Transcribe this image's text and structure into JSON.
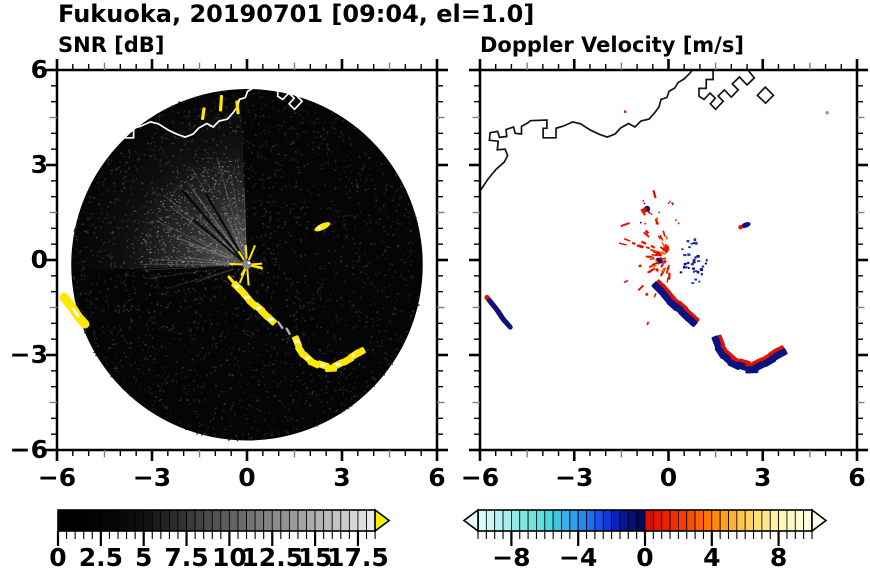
{
  "title": "Fukuoka, 20190701 [09:04, el=1.0]",
  "panels": [
    {
      "subtitle": "SNR [dB]"
    },
    {
      "subtitle": "Doppler Velocity [m/s]"
    }
  ],
  "axes": {
    "xlim": [
      -6,
      6
    ],
    "ylim": [
      -6,
      6
    ],
    "major_ticks": [
      -6,
      -3,
      0,
      3,
      6
    ],
    "minor_tick_step": 0.5,
    "gray_ticks": [
      -4.5,
      -1.5,
      1.5,
      4.5
    ],
    "x_tick_labels": [
      "−6",
      "−3",
      "0",
      "3",
      "6"
    ],
    "y_tick_labels": [
      "6",
      "3",
      "0",
      "−3",
      "−6"
    ],
    "frame_color": "#000000",
    "gray_tick_color": "#808080"
  },
  "chart_data": [
    {
      "type": "heatmap",
      "title": "SNR [dB]",
      "xlabel": "",
      "ylabel": "",
      "xlim": [
        -6,
        6
      ],
      "ylim": [
        -6,
        6
      ],
      "scan_disk": {
        "center": [
          0,
          -0.15
        ],
        "radius": 5.55,
        "fill": "#050505"
      },
      "noise": {
        "seed": 7,
        "count": 2600,
        "bright_count": 380,
        "fan_angles": [
          92,
          182
        ],
        "dim_fan_angles": [
          182,
          228
        ]
      },
      "dark_rays": [
        [
          120,
          2.6
        ],
        [
          131,
          3.1
        ],
        [
          140,
          2.2
        ]
      ],
      "colorbar": {
        "min": 0,
        "max": 18.5,
        "cell_step": 0.5,
        "label_values": [
          0,
          2.5,
          5,
          7.5,
          10,
          12.5,
          15,
          17.5
        ],
        "labels": [
          "0",
          "2.5",
          "5",
          "7.5",
          "10",
          "12.5",
          "15",
          "17.5"
        ],
        "over_arrow_color": "#f7ef00",
        "cells": [
          "#000000",
          "#000000",
          "#010101",
          "#020202",
          "#030303",
          "#050505",
          "#060606",
          "#080808",
          "#0b0b0b",
          "#0e0e0e",
          "#131313",
          "#1b1b1b",
          "#232323",
          "#2b2b2b",
          "#333333",
          "#3b3b3b",
          "#434343",
          "#4b4b4b",
          "#535353",
          "#5b5b5b",
          "#636363",
          "#6b6b6b",
          "#737373",
          "#7b7b7b",
          "#838383",
          "#8b8b8b",
          "#939393",
          "#9b9b9b",
          "#a3a3a3",
          "#ababab",
          "#b3b3b3",
          "#bbbbbb",
          "#c3c3c3",
          "#cccccc",
          "#d5d5d5",
          "#dedede",
          "#e8e8e8"
        ]
      },
      "echo_color": "#ffe800",
      "echo_core_color": "#ffffff",
      "echoes": {
        "top_dashes": [
          [
            -1.38,
            4.62,
            0.4,
            8
          ],
          [
            -0.82,
            4.95,
            0.52,
            4
          ],
          [
            -0.3,
            4.82,
            0.44,
            -6
          ]
        ],
        "mid_blob": [
          2.38,
          1.05,
          0.55,
          0.2,
          -25
        ],
        "edge_patch": [
          [
            -5.78,
            -1.18
          ],
          [
            -5.5,
            -1.52
          ],
          [
            -5.32,
            -1.8
          ],
          [
            -5.12,
            -2.02
          ]
        ],
        "gap_dashes": [
          [
            1.05,
            -2.05,
            0.3,
            -35
          ],
          [
            1.3,
            -2.25,
            0.26,
            -30
          ]
        ],
        "center_dash": [
          -0.5,
          -0.62,
          0.3,
          -40
        ]
      }
    },
    {
      "type": "scatter",
      "title": "Doppler Velocity [m/s]",
      "xlabel": "",
      "ylabel": "",
      "xlim": [
        -6,
        6
      ],
      "ylim": [
        -6,
        6
      ],
      "colorbar": {
        "min": -10,
        "max": 10,
        "cell_step": 0.5,
        "label_values": [
          -8,
          -4,
          0,
          4,
          8
        ],
        "labels": [
          "−8",
          "−4",
          "0",
          "4",
          "8"
        ],
        "under_arrow_color": "#e6fcfa",
        "over_arrow_color": "#fffef0",
        "cells": [
          "#dcfaf8",
          "#cbf6f4",
          "#b9f2f0",
          "#a7eeec",
          "#95eae8",
          "#83e6e4",
          "#71e2e0",
          "#5fdedd",
          "#4fd6dd",
          "#45c4e2",
          "#3bb1e7",
          "#329eec",
          "#2887f0",
          "#1f6df3",
          "#1750f0",
          "#1036dd",
          "#0a23bb",
          "#061699",
          "#040e7c",
          "#02075e",
          "#d81000",
          "#e11700",
          "#e92100",
          "#f02c00",
          "#f63d00",
          "#fb4f00",
          "#ff6300",
          "#ff7700",
          "#ff8c09",
          "#ffa01e",
          "#ffb234",
          "#ffc34b",
          "#ffd262",
          "#ffdf79",
          "#ffe98f",
          "#fff0a4",
          "#fff5b7",
          "#fff8c7",
          "#fffbd5",
          "#fffde1"
        ]
      },
      "pos_color": "#e01200",
      "neg_color": "#0a1280",
      "speck_field": {
        "seed": 20190701,
        "reds": {
          "count": 74,
          "center": [
            0.05,
            0.1
          ],
          "ang": [
            95,
            268
          ],
          "rmin": 0.22,
          "rmax": 1.85
        },
        "blues": {
          "count": 36,
          "center": [
            0.25,
            -0.05
          ],
          "ang": [
            -70,
            70
          ],
          "rmin": 0.25,
          "rmax": 1.05
        },
        "sparse": {
          "count": 14,
          "box": [
            -0.95,
            1.15,
            1.3,
            0.85
          ]
        }
      },
      "features": {
        "navy_chunk": [
          -0.28,
          -0.02,
          0.24,
          0.13,
          40
        ],
        "upper_dot": [
          -0.68,
          1.62
        ],
        "red_dash": [
          -1.38,
          1.12,
          0.3,
          -20
        ],
        "right_blob": [
          2.4,
          1.08
        ],
        "coast_fleck": [
          -1.42,
          4.72
        ],
        "bottom_speck": [
          1.62,
          -2.55
        ],
        "gray_dot": [
          5.05,
          4.65
        ]
      }
    }
  ],
  "echo_band": {
    "chain1": [
      [
        -0.3,
        -0.85
      ],
      [
        -0.15,
        -1.0
      ],
      [
        0.0,
        -1.18
      ],
      [
        0.18,
        -1.38
      ],
      [
        0.38,
        -1.52
      ],
      [
        0.55,
        -1.7
      ],
      [
        0.75,
        -1.88
      ]
    ],
    "chain2": [
      [
        1.58,
        -2.58
      ],
      [
        1.7,
        -2.88
      ],
      [
        1.92,
        -3.1
      ],
      [
        2.12,
        -3.26
      ],
      [
        2.4,
        -3.32
      ],
      [
        2.65,
        -3.42
      ],
      [
        2.88,
        -3.3
      ],
      [
        3.18,
        -3.16
      ],
      [
        3.4,
        -3.0
      ],
      [
        3.55,
        -2.92
      ]
    ]
  },
  "coastline": {
    "color_left": "#ffffff",
    "color_right": "#141414",
    "main": [
      [
        -6.05,
        2.1
      ],
      [
        -5.75,
        2.55
      ],
      [
        -5.5,
        2.85
      ],
      [
        -5.22,
        3.1
      ],
      [
        -5.12,
        3.3
      ],
      [
        -5.2,
        3.5
      ],
      [
        -5.45,
        3.48
      ],
      [
        -5.42,
        3.75
      ],
      [
        -5.7,
        3.78
      ],
      [
        -5.68,
        4.02
      ],
      [
        -5.44,
        4.06
      ],
      [
        -5.38,
        3.87
      ],
      [
        -5.15,
        3.9
      ],
      [
        -5.17,
        4.12
      ],
      [
        -4.93,
        4.2
      ],
      [
        -4.88,
        4.0
      ],
      [
        -4.68,
        3.98
      ],
      [
        -4.68,
        4.22
      ],
      [
        -4.48,
        4.33
      ],
      [
        -4.4,
        4.4
      ],
      [
        -3.87,
        4.42
      ],
      [
        -3.87,
        4.16
      ],
      [
        -3.99,
        4.16
      ],
      [
        -3.99,
        3.86
      ],
      [
        -3.58,
        3.86
      ],
      [
        -3.58,
        4.16
      ],
      [
        -3.34,
        4.23
      ],
      [
        -3.05,
        4.36
      ],
      [
        -2.8,
        4.3
      ],
      [
        -2.48,
        4.1
      ],
      [
        -2.2,
        3.97
      ],
      [
        -1.95,
        3.88
      ],
      [
        -1.7,
        3.98
      ],
      [
        -1.52,
        4.17
      ],
      [
        -1.27,
        4.31
      ],
      [
        -1.07,
        4.2
      ],
      [
        -0.88,
        4.39
      ],
      [
        -0.62,
        4.45
      ],
      [
        -0.45,
        4.64
      ],
      [
        -0.3,
        4.84
      ],
      [
        -0.24,
        5.07
      ],
      [
        -0.05,
        5.13
      ],
      [
        0.02,
        5.33
      ],
      [
        0.2,
        5.43
      ],
      [
        0.3,
        5.6
      ],
      [
        0.5,
        5.72
      ],
      [
        0.68,
        5.9
      ],
      [
        0.76,
        6.0
      ]
    ],
    "port_a": [
      [
        1.42,
        6.0
      ],
      [
        1.42,
        5.7
      ],
      [
        1.2,
        5.7
      ],
      [
        1.2,
        5.42
      ],
      [
        0.97,
        5.42
      ],
      [
        0.97,
        5.17
      ],
      [
        1.13,
        5.07
      ],
      [
        1.32,
        5.27
      ],
      [
        1.49,
        5.11
      ],
      [
        1.33,
        4.93
      ],
      [
        1.5,
        4.76
      ],
      [
        1.74,
        5.01
      ],
      [
        1.58,
        5.18
      ],
      [
        1.78,
        5.37
      ],
      [
        2.0,
        5.14
      ],
      [
        2.22,
        5.37
      ],
      [
        2.03,
        5.56
      ],
      [
        2.26,
        5.78
      ],
      [
        2.5,
        5.53
      ],
      [
        2.73,
        5.75
      ],
      [
        2.55,
        5.97
      ],
      [
        2.53,
        6.0
      ]
    ],
    "port_b": [
      [
        2.83,
        5.2
      ],
      [
        3.08,
        5.46
      ],
      [
        3.34,
        5.2
      ],
      [
        3.09,
        4.95
      ]
    ]
  }
}
